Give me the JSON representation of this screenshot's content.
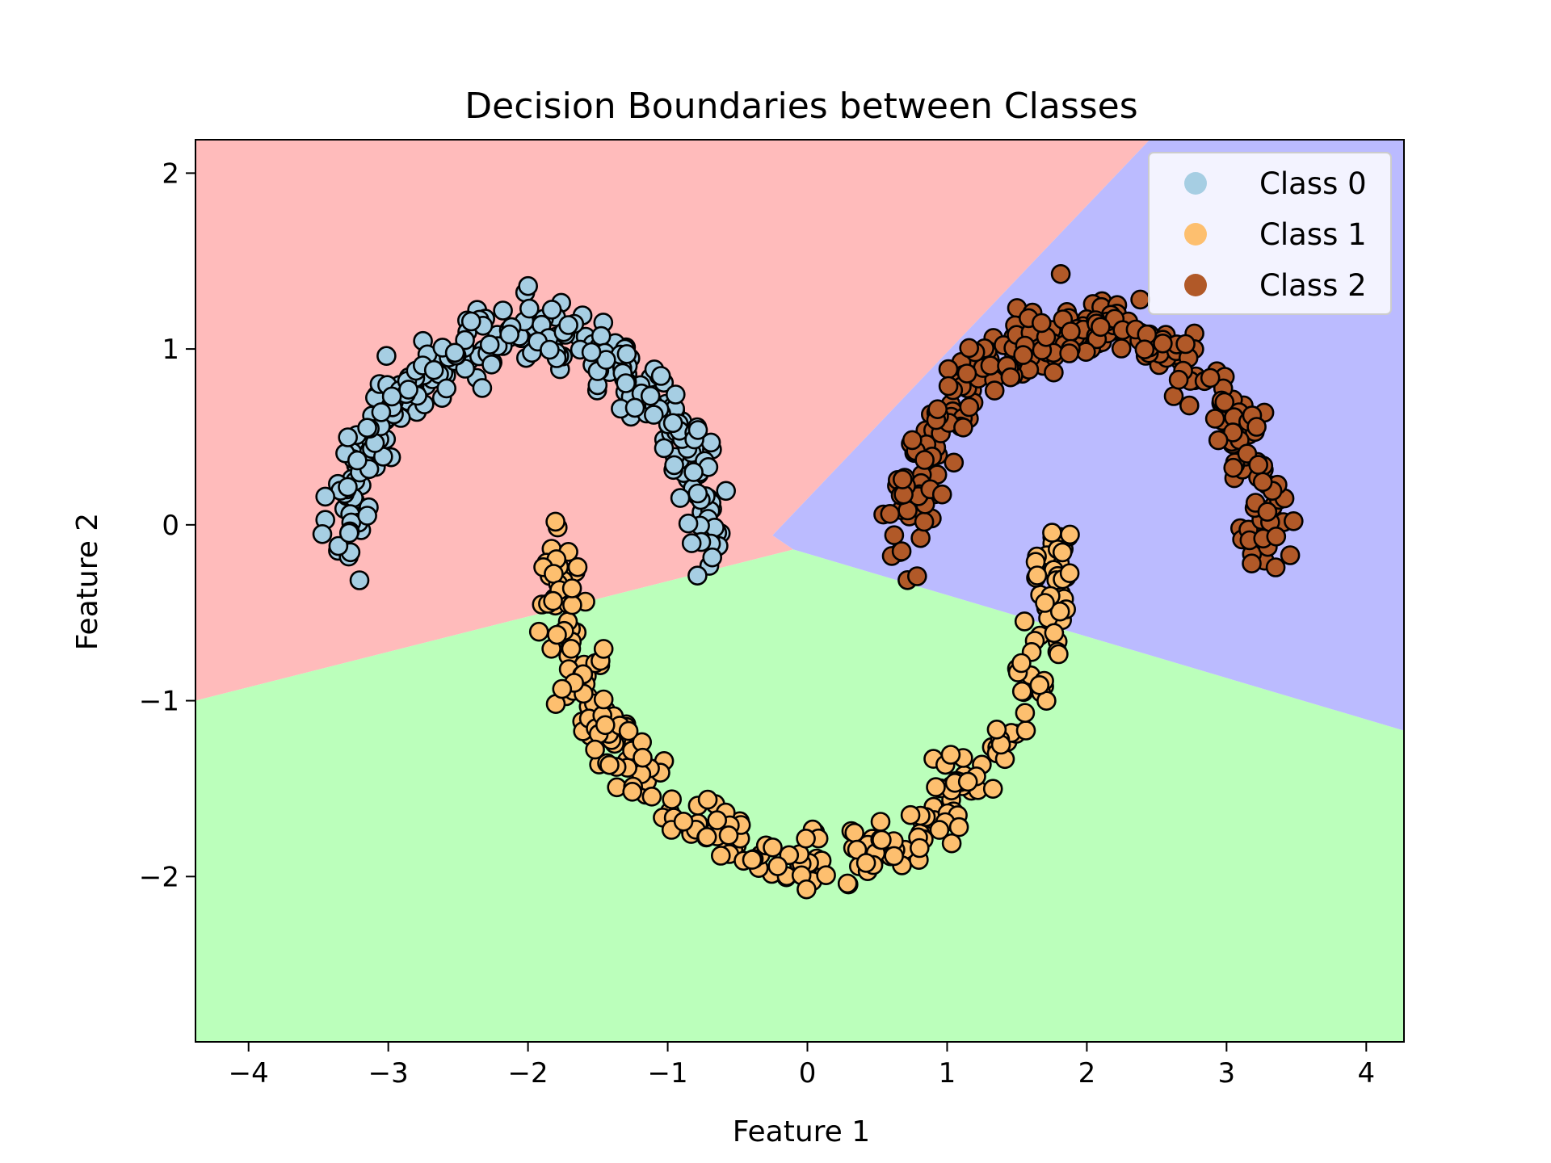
{
  "chart_data": {
    "type": "scatter",
    "title": "Decision Boundaries between Classes",
    "xlabel": "Feature 1",
    "ylabel": "Feature 2",
    "xlim": [
      -4.38,
      4.27
    ],
    "ylim": [
      -2.94,
      2.19
    ],
    "xticks": [
      -4,
      -3,
      -2,
      -1,
      0,
      1,
      2,
      3,
      4
    ],
    "yticks": [
      -2,
      -1,
      0,
      1,
      2
    ],
    "xtick_labels": [
      "−4",
      "−3",
      "−2",
      "−1",
      "0",
      "1",
      "2",
      "3",
      "4"
    ],
    "ytick_labels": [
      "−2",
      "−1",
      "0",
      "1",
      "2"
    ],
    "grid": false,
    "legend_position": "top-right",
    "regions": [
      {
        "class": "Class 0",
        "color": "#ffbbbb",
        "polygon": [
          [
            -4.38,
            2.19
          ],
          [
            2.45,
            2.19
          ],
          [
            -0.25,
            -0.06
          ],
          [
            -0.1,
            -0.14
          ],
          [
            -4.38,
            -1.0
          ]
        ]
      },
      {
        "class": "Class 1",
        "color": "#bbffbb",
        "polygon": [
          [
            -4.38,
            -1.0
          ],
          [
            -0.1,
            -0.14
          ],
          [
            4.27,
            -1.17
          ],
          [
            4.27,
            -2.94
          ],
          [
            -4.38,
            -2.94
          ]
        ]
      },
      {
        "class": "Class 2",
        "color": "#bbbbff",
        "polygon": [
          [
            2.45,
            2.19
          ],
          [
            4.27,
            2.19
          ],
          [
            4.27,
            -1.17
          ],
          [
            -0.1,
            -0.14
          ],
          [
            -0.25,
            -0.06
          ]
        ]
      }
    ],
    "series": [
      {
        "name": "Class 0",
        "color": "#a6cee3",
        "moon": {
          "cx": -2.0,
          "cy": -0.2,
          "r": 1.3,
          "theta_start": 0.0,
          "theta_end": 180.0,
          "n": 300,
          "noise": 0.09
        }
      },
      {
        "name": "Class 1",
        "color": "#fdbf6f",
        "moon": {
          "cx": 0.0,
          "cy": -0.1,
          "r": 1.8,
          "theta_start": 180.0,
          "theta_end": 360.0,
          "n": 300,
          "noise": 0.09
        }
      },
      {
        "name": "Class 2",
        "color": "#b15928",
        "moon": {
          "cx": 2.0,
          "cy": -0.2,
          "r": 1.3,
          "theta_start": 0.0,
          "theta_end": 180.0,
          "n": 300,
          "noise": 0.09
        }
      }
    ]
  }
}
